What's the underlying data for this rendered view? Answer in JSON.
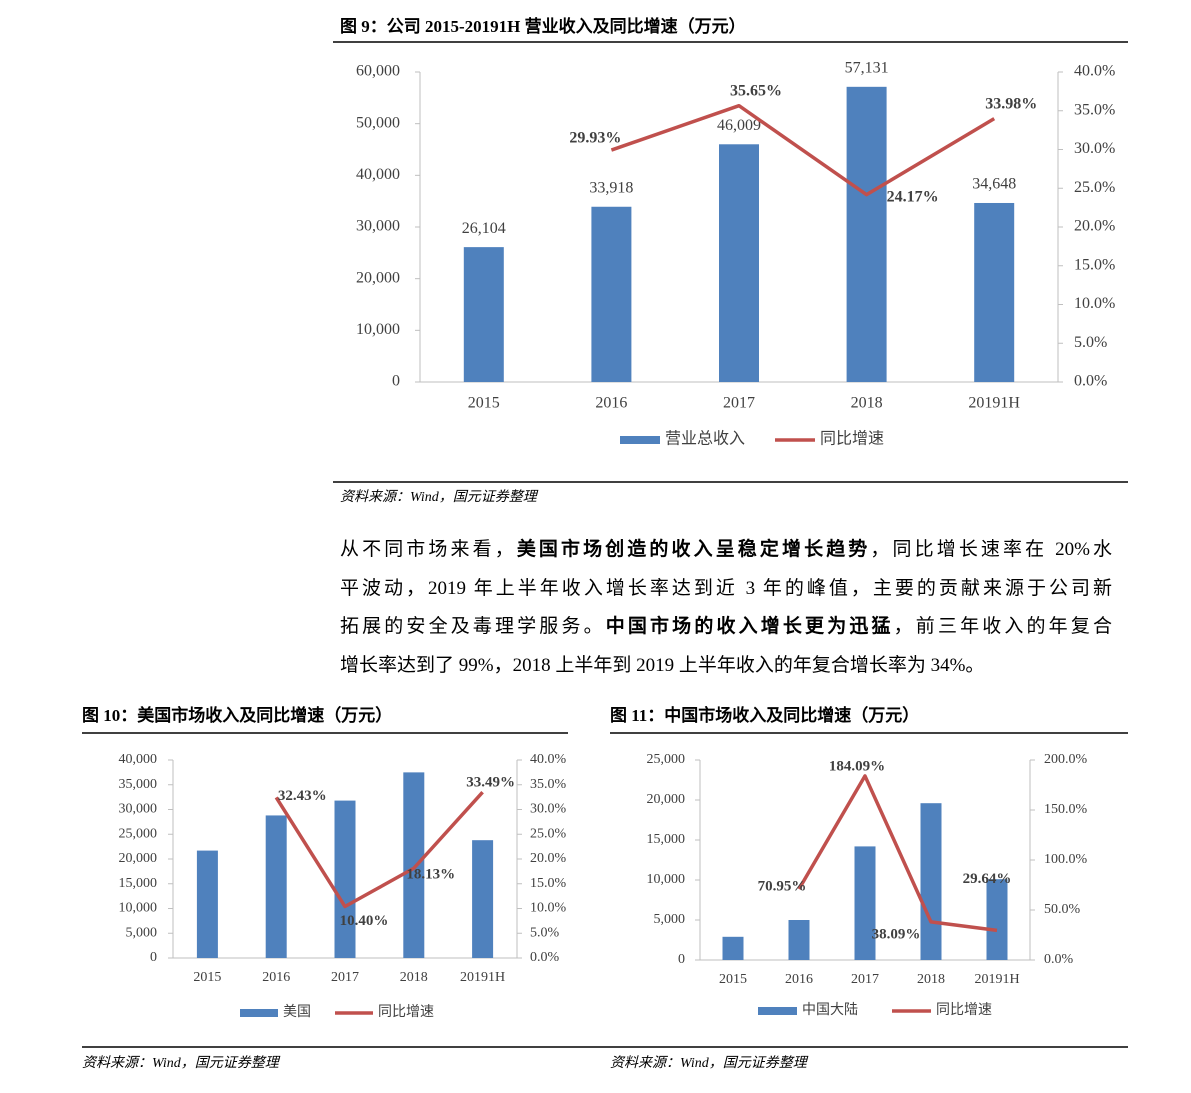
{
  "chart_data": [
    {
      "type": "combo",
      "title": "图 9：公司 2015-20191H 营业收入及同比增速（万元）",
      "source": "资料来源：Wind，国元证券整理",
      "categories": [
        "2015",
        "2016",
        "2017",
        "2018",
        "20191H"
      ],
      "series": [
        {
          "name": "营业总收入",
          "type": "bar",
          "color": "#4f81bd",
          "values": [
            26104,
            33918,
            46009,
            57131,
            34648
          ],
          "value_labels": [
            "26,104",
            "33,918",
            "46,009",
            "57,131",
            "34,648"
          ]
        },
        {
          "name": "同比增速",
          "type": "line",
          "axis": "y2",
          "color": "#c0504d",
          "values": [
            null,
            29.93,
            35.65,
            24.17,
            33.98
          ],
          "value_labels": [
            null,
            "29.93%",
            "35.65%",
            "24.17%",
            "33.98%"
          ]
        }
      ],
      "ylim": [
        0,
        60000
      ],
      "yticks": [
        0,
        {
          "value": 10000,
          "label": "10,000"
        },
        {
          "value": 20000,
          "label": "20,000"
        },
        {
          "value": 30000,
          "label": "30,000"
        },
        {
          "value": 40000,
          "label": "40,000"
        },
        {
          "value": 50000,
          "label": "50,000"
        },
        {
          "value": 60000,
          "label": "60,000"
        }
      ],
      "y2lim": [
        0,
        40
      ],
      "y2ticks": [
        {
          "value": 0,
          "label": "0.0%"
        },
        {
          "value": 5,
          "label": "5.0%"
        },
        {
          "value": 10,
          "label": "10.0%"
        },
        {
          "value": 15,
          "label": "15.0%"
        },
        {
          "value": 20,
          "label": "20.0%"
        },
        {
          "value": 25,
          "label": "25.0%"
        },
        {
          "value": 30,
          "label": "30.0%"
        },
        {
          "value": 35,
          "label": "35.0%"
        },
        {
          "value": 40,
          "label": "40.0%"
        }
      ],
      "grid": false,
      "legend": "bottom"
    },
    {
      "type": "combo",
      "title": "图 10：美国市场收入及同比增速（万元）",
      "source": "资料来源：Wind，国元证券整理",
      "categories": [
        "2015",
        "2016",
        "2017",
        "2018",
        "20191H"
      ],
      "series": [
        {
          "name": "美国",
          "type": "bar",
          "color": "#4f81bd",
          "values": [
            21700,
            28800,
            31800,
            37500,
            23800
          ]
        },
        {
          "name": "同比增速",
          "type": "line",
          "axis": "y2",
          "color": "#c0504d",
          "values": [
            null,
            32.43,
            10.4,
            18.13,
            33.49
          ],
          "value_labels": [
            null,
            "32.43%",
            "10.40%",
            "18.13%",
            "33.49%"
          ]
        }
      ],
      "ylim": [
        0,
        40000
      ],
      "yticks": [
        0,
        {
          "value": 5000,
          "label": "5,000"
        },
        {
          "value": 10000,
          "label": "10,000"
        },
        {
          "value": 15000,
          "label": "15,000"
        },
        {
          "value": 20000,
          "label": "20,000"
        },
        {
          "value": 25000,
          "label": "25,000"
        },
        {
          "value": 30000,
          "label": "30,000"
        },
        {
          "value": 35000,
          "label": "35,000"
        },
        {
          "value": 40000,
          "label": "40,000"
        }
      ],
      "y2lim": [
        0,
        40
      ],
      "y2ticks": [
        {
          "value": 0,
          "label": "0.0%"
        },
        {
          "value": 5,
          "label": "5.0%"
        },
        {
          "value": 10,
          "label": "10.0%"
        },
        {
          "value": 15,
          "label": "15.0%"
        },
        {
          "value": 20,
          "label": "20.0%"
        },
        {
          "value": 25,
          "label": "25.0%"
        },
        {
          "value": 30,
          "label": "30.0%"
        },
        {
          "value": 35,
          "label": "35.0%"
        },
        {
          "value": 40,
          "label": "40.0%"
        }
      ],
      "grid": false,
      "legend": "bottom"
    },
    {
      "type": "combo",
      "title": "图 11：中国市场收入及同比增速（万元）",
      "source": "资料来源：Wind，国元证券整理",
      "categories": [
        "2015",
        "2016",
        "2017",
        "2018",
        "20191H"
      ],
      "series": [
        {
          "name": "中国大陆",
          "type": "bar",
          "color": "#4f81bd",
          "values": [
            2900,
            5000,
            14200,
            19600,
            10100
          ]
        },
        {
          "name": "同比增速",
          "type": "line",
          "axis": "y2",
          "color": "#c0504d",
          "values": [
            null,
            70.95,
            184.09,
            38.09,
            29.64
          ],
          "value_labels": [
            null,
            "70.95%",
            "184.09%",
            "38.09%",
            "29.64%"
          ]
        }
      ],
      "ylim": [
        0,
        25000
      ],
      "yticks": [
        0,
        {
          "value": 5000,
          "label": "5,000"
        },
        {
          "value": 10000,
          "label": "10,000"
        },
        {
          "value": 15000,
          "label": "15,000"
        },
        {
          "value": 20000,
          "label": "20,000"
        },
        {
          "value": 25000,
          "label": "25,000"
        }
      ],
      "y2lim": [
        0,
        200
      ],
      "y2ticks": [
        {
          "value": 0,
          "label": "0.0%"
        },
        {
          "value": 50,
          "label": "50.0%"
        },
        {
          "value": 100,
          "label": "100.0%"
        },
        {
          "value": 150,
          "label": "150.0%"
        },
        {
          "value": 200,
          "label": "200.0%"
        }
      ],
      "grid": false,
      "legend": "bottom"
    }
  ],
  "paragraph": {
    "lines": [
      {
        "runs": [
          {
            "text": "从不同市场来看，"
          },
          {
            "text": "美国市场创造的收入呈稳定增长趋势",
            "bold": true
          },
          {
            "text": "，同比增长速率在 20%水"
          }
        ]
      },
      {
        "runs": [
          {
            "text": "平波动，2019 年上半年收入增长率达到近 3 年的峰值，主要的贡献来源于公司新"
          }
        ]
      },
      {
        "runs": [
          {
            "text": "拓展的安全及毒理学服务。"
          },
          {
            "text": "中国市场的收入增长更为迅猛",
            "bold": true
          },
          {
            "text": "，前三年收入的年复合"
          }
        ]
      },
      {
        "runs": [
          {
            "text": "增长率达到了 99%，2018 上半年到 2019 上半年收入的年复合增长率为 34%。"
          }
        ]
      }
    ]
  }
}
